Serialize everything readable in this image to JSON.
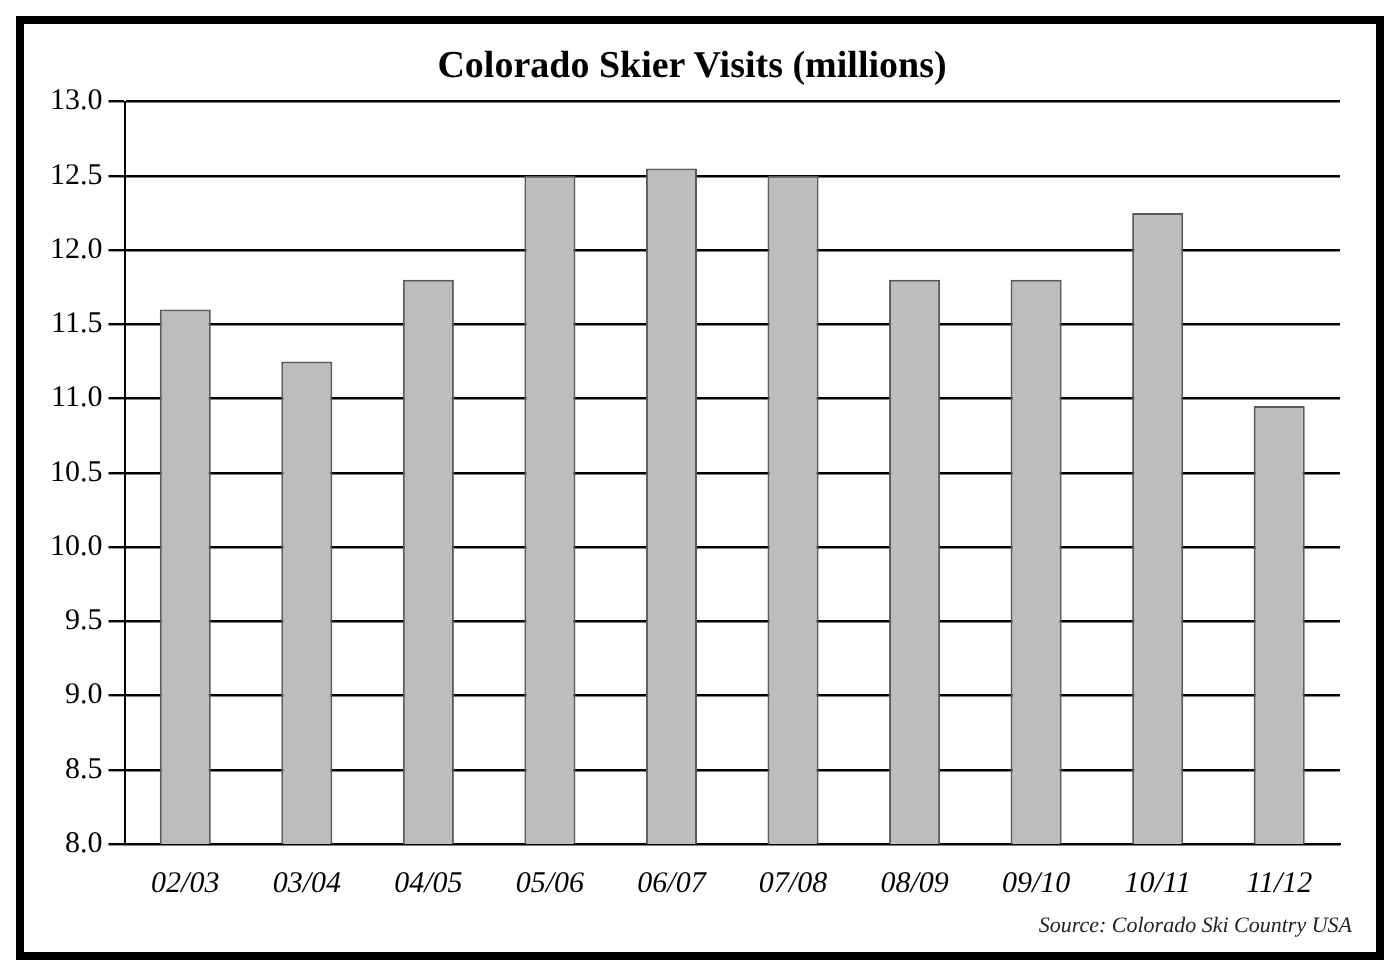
{
  "chart_data": {
    "type": "bar",
    "title": "Colorado Skier Visits (millions)",
    "categories": [
      "02/03",
      "03/04",
      "04/05",
      "05/06",
      "06/07",
      "07/08",
      "08/09",
      "09/10",
      "10/11",
      "11/12"
    ],
    "values": [
      11.6,
      11.25,
      11.8,
      12.5,
      12.55,
      12.5,
      11.8,
      11.8,
      12.25,
      10.95
    ],
    "color": "#bdbdbd",
    "ylim": [
      8,
      13
    ],
    "yticks": [
      {
        "value": 8,
        "label": "8.0"
      },
      8.5,
      {
        "value": 9,
        "label": "9.0"
      },
      9.5,
      {
        "value": 10,
        "label": "10.0"
      },
      10.5,
      {
        "value": 11,
        "label": "11.0"
      },
      11.5,
      {
        "value": 12,
        "label": "12.0"
      },
      12.5,
      {
        "value": 13,
        "label": "13.0"
      }
    ],
    "grid": "y",
    "legend": false,
    "annotations": [
      "Source: Colorado Ski Country USA"
    ]
  }
}
